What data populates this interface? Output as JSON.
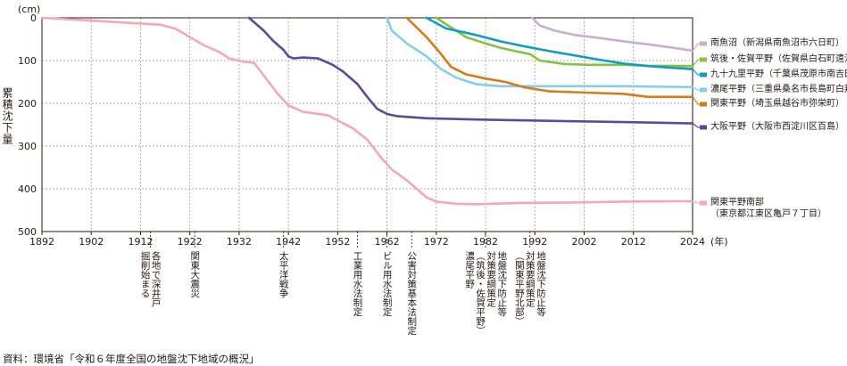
{
  "chart_data": {
    "type": "line",
    "xlim": [
      1892,
      2024
    ],
    "ylim": [
      0,
      500
    ],
    "y_inverted": true,
    "grid": true,
    "xticks": [
      1892,
      1902,
      1912,
      1922,
      1932,
      1942,
      1952,
      1962,
      1972,
      1982,
      1992,
      2002,
      2012,
      2024
    ],
    "yticks": [
      0,
      100,
      200,
      300,
      400,
      500
    ],
    "x_unit_label": "(年)",
    "y_unit_label": "(cm)",
    "ylabel": "累積沈下量",
    "series": [
      {
        "name": "南魚沼（新潟県南魚沼市六日町）",
        "color": "#c8aed3",
        "x": [
          1991.5,
          1993,
          1996,
          2000,
          2005,
          2010,
          2015,
          2020,
          2024
        ],
        "y": [
          0,
          18,
          30,
          40,
          47,
          55,
          62,
          70,
          77
        ]
      },
      {
        "name": "筑後・佐賀平野（佐賀県白石町遠江）",
        "color": "#82c341",
        "x": [
          1972,
          1974,
          1978,
          1982,
          1985,
          1988,
          1991,
          1993,
          1998,
          2003,
          2010,
          2015,
          2024
        ],
        "y": [
          0,
          15,
          45,
          60,
          70,
          78,
          85,
          100,
          108,
          110,
          110,
          112,
          113
        ]
      },
      {
        "name": "九十九里平野（千葉県茂原市南吉田）",
        "color": "#139bc3",
        "x": [
          1970,
          1974,
          1980,
          1985,
          1990,
          1995,
          2000,
          2005,
          2010,
          2015,
          2020,
          2024
        ],
        "y": [
          0,
          25,
          40,
          55,
          67,
          78,
          88,
          98,
          107,
          113,
          117,
          120
        ]
      },
      {
        "name": "濃尾平野（三重県桑名市長島町白鶏）",
        "color": "#86cdea",
        "x": [
          1962,
          1963,
          1966,
          1970,
          1973,
          1976,
          1980,
          1985,
          1990,
          2000,
          2010,
          2024
        ],
        "y": [
          0,
          30,
          60,
          90,
          120,
          140,
          155,
          160,
          160,
          160,
          160,
          162
        ]
      },
      {
        "name": "関東平野（埼玉県越谷市弥栄町）",
        "color": "#d27c1b",
        "x": [
          1966,
          1970,
          1973,
          1975,
          1978,
          1982,
          1986,
          1990,
          1995,
          2000,
          2005,
          2010,
          2015,
          2024
        ],
        "y": [
          0,
          45,
          85,
          115,
          132,
          142,
          150,
          163,
          172,
          174,
          176,
          178,
          185,
          185
        ]
      },
      {
        "name": "大阪平野（大阪市西淀川区百島）",
        "color": "#5a4b9a",
        "x": [
          1934,
          1937,
          1939,
          1941,
          1942,
          1943,
          1945,
          1948,
          1951,
          1953,
          1956,
          1958,
          1960,
          1962,
          1964,
          1970,
          1980,
          1990,
          2000,
          2010,
          2024
        ],
        "y": [
          0,
          30,
          55,
          75,
          90,
          95,
          93,
          95,
          110,
          125,
          155,
          185,
          213,
          225,
          230,
          235,
          238,
          240,
          242,
          244,
          247
        ]
      },
      {
        "name": "関東平野南部（東京都江東区亀戸７丁目）",
        "color": "#f4a7b9",
        "x": [
          1892,
          1900,
          1910,
          1916,
          1919,
          1922,
          1925,
          1928,
          1930,
          1933,
          1935,
          1938,
          1940,
          1942,
          1945,
          1950,
          1955,
          1958,
          1961,
          1963,
          1966,
          1968,
          1970,
          1972,
          1976,
          1980,
          1990,
          2000,
          2010,
          2024
        ],
        "y": [
          0,
          5,
          12,
          16,
          25,
          45,
          65,
          80,
          95,
          103,
          105,
          150,
          180,
          205,
          220,
          228,
          258,
          285,
          330,
          355,
          380,
          400,
          420,
          430,
          435,
          436,
          433,
          432,
          430,
          429
        ]
      }
    ]
  },
  "annotations": [
    {
      "year": 1914,
      "lines": [
        "各地で深井戸",
        "掘削始まる"
      ]
    },
    {
      "year": 1923,
      "lines": [
        "関東大震災"
      ]
    },
    {
      "year": 1941,
      "lines": [
        "太平洋戦争"
      ]
    },
    {
      "year": 1956,
      "lines": [
        "工業用水法制定"
      ]
    },
    {
      "year": 1962,
      "lines": [
        "ビル用水法制定"
      ]
    },
    {
      "year": 1967,
      "lines": [
        "公害対策基本法制定"
      ]
    },
    {
      "year": 1982,
      "lines": [
        "地盤沈下防止等",
        "対策要綱策定",
        "（筑後・佐賀平野）",
        "濃尾平野"
      ]
    },
    {
      "year": 1991,
      "lines": [
        "地盤沈下防止等",
        "対策要綱策定",
        "（関東平野北部）"
      ]
    }
  ],
  "legend_labels": [
    "南魚沼（新潟県南魚沼市六日町）",
    "筑後・佐賀平野（佐賀県白石町遠江）",
    "九十九里平野（千葉県茂原市南吉田）",
    "濃尾平野（三重県桑名市長島町白鶏）",
    "関東平野（埼玉県越谷市弥栄町）",
    "大阪平野（大阪市西淀川区百島）",
    "関東平野南部",
    "（東京都江東区亀戸７丁目）"
  ],
  "source": "資料：環境省「令和６年度全国の地盤沈下地域の概況」"
}
